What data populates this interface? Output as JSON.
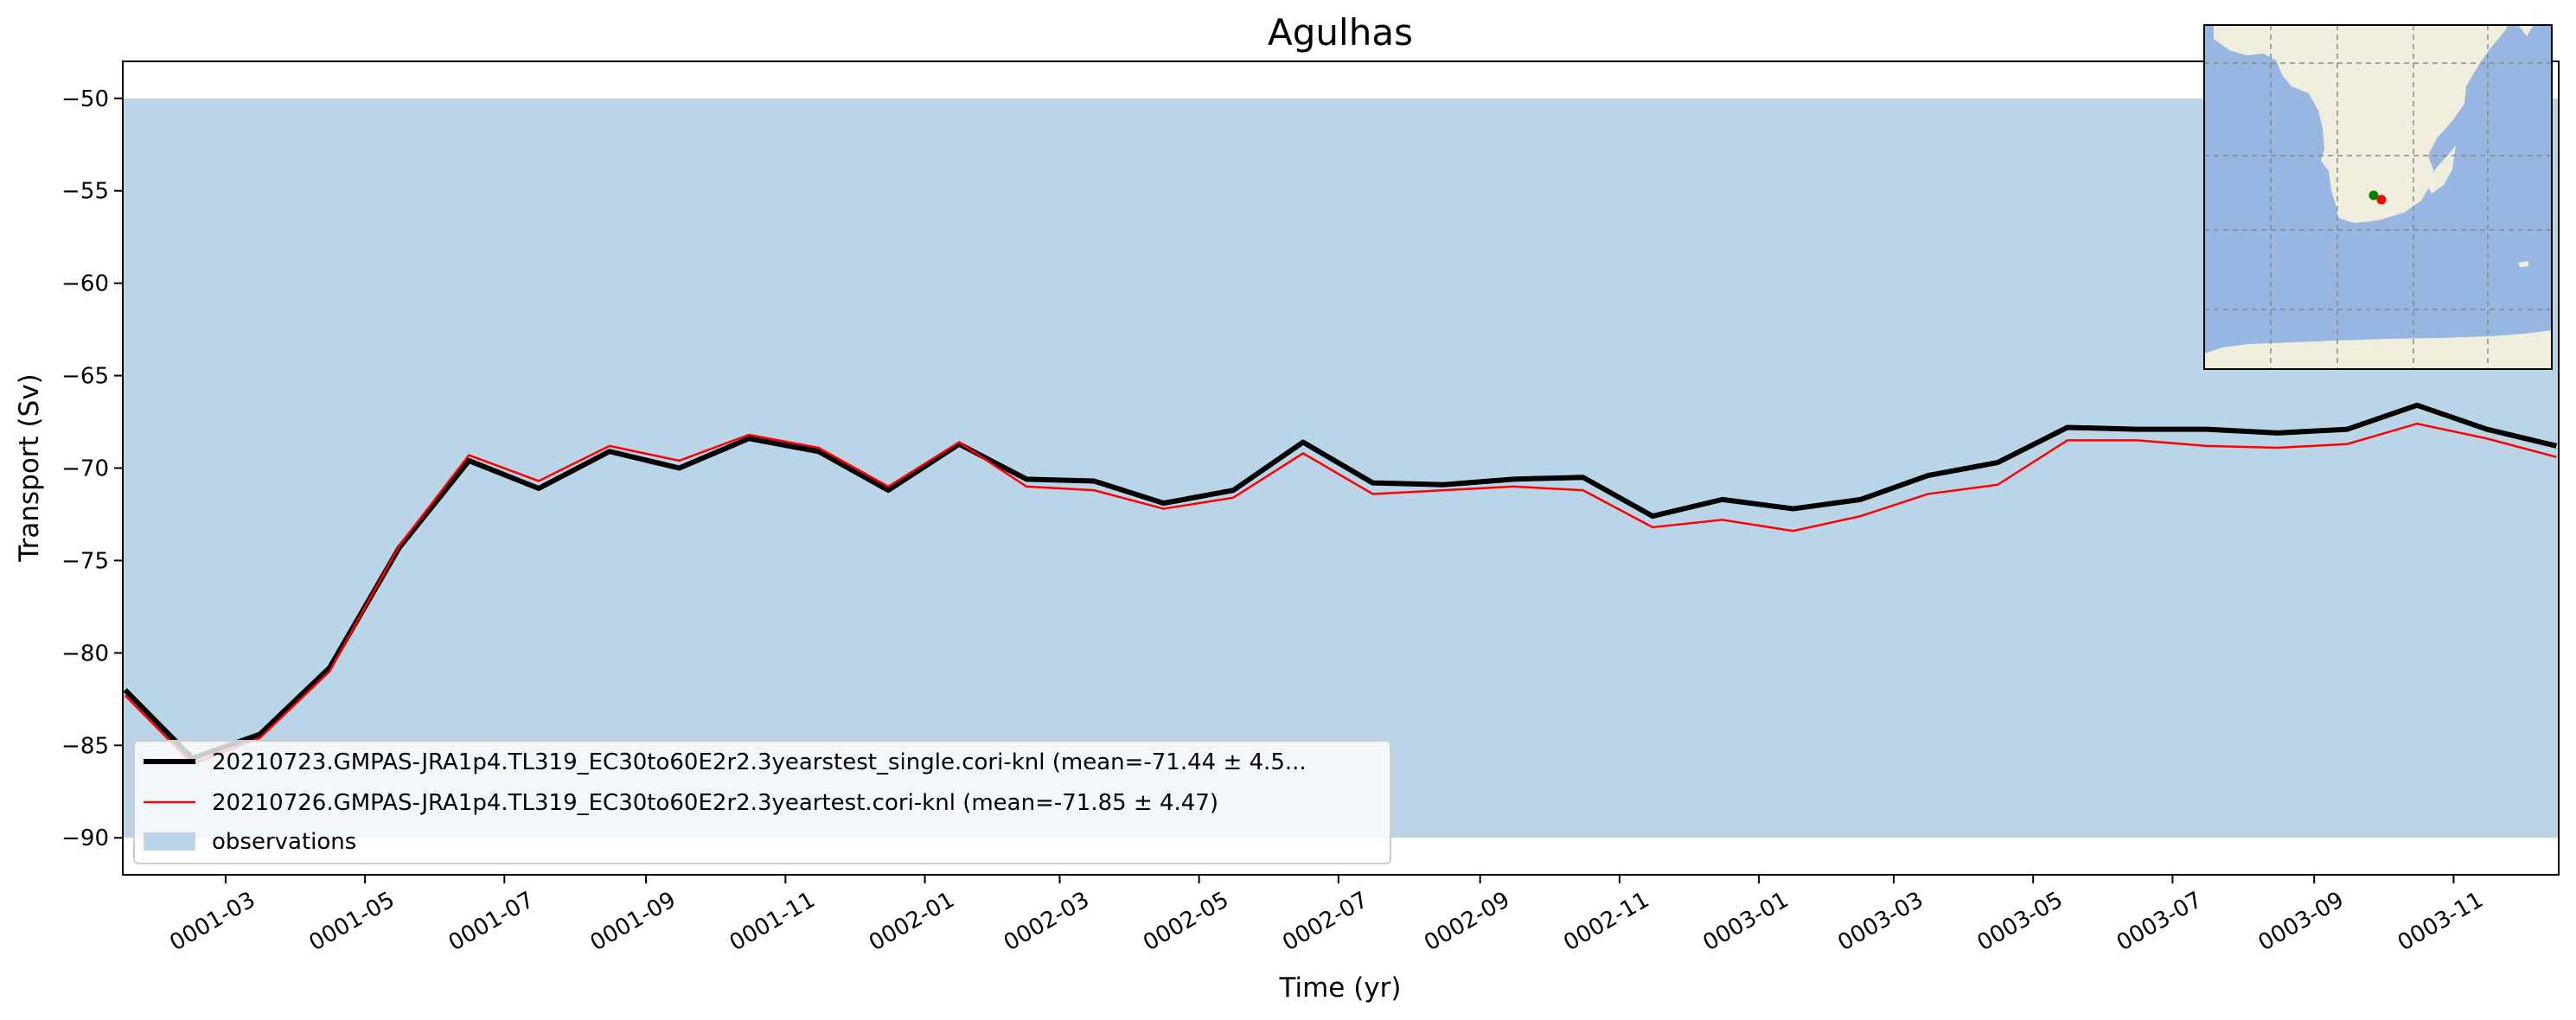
{
  "chart_data": {
    "type": "line",
    "title": "Agulhas",
    "xlabel": "Time (yr)",
    "ylabel": "Transport (Sv)",
    "x_start_month": "0001-01",
    "x_ticks": [
      "0001-03",
      "0001-05",
      "0001-07",
      "0001-09",
      "0001-11",
      "0002-01",
      "0002-03",
      "0002-05",
      "0002-07",
      "0002-09",
      "0002-11",
      "0003-01",
      "0003-03",
      "0003-05",
      "0003-07",
      "0003-09",
      "0003-11"
    ],
    "xlim": [
      "0001-01-15",
      "0003-12-17"
    ],
    "ylim": [
      -92,
      -48
    ],
    "y_ticks": [
      -50,
      -55,
      -60,
      -65,
      -70,
      -75,
      -80,
      -85,
      -90
    ],
    "grid": false,
    "legend_location": "lower left",
    "observations": {
      "name": "observations",
      "range": [
        -90,
        -50
      ],
      "color": "#bad5e8"
    },
    "series": [
      {
        "name": "20210723.GMPAS-JRA1p4.TL319_EC30to60E2r2.3yearstest_single.cori-knl (mean=-71.44 ± 4.5...",
        "color": "#000000",
        "values": [
          -82.0,
          -85.7,
          -84.4,
          -80.8,
          -74.3,
          -69.6,
          -71.1,
          -69.1,
          -70.0,
          -68.4,
          -69.1,
          -71.2,
          -68.7,
          -70.6,
          -70.7,
          -71.9,
          -71.2,
          -68.6,
          -70.8,
          -70.9,
          -70.6,
          -70.5,
          -72.6,
          -71.7,
          -72.2,
          -71.7,
          -70.4,
          -69.7,
          -67.8,
          -67.9,
          -67.9,
          -68.1,
          -67.9,
          -66.6,
          -67.9,
          -68.8
        ]
      },
      {
        "name": "20210726.GMPAS-JRA1p4.TL319_EC30to60E2r2.3yeartest.cori-knl (mean=-71.85 ± 4.47)",
        "color": "#ff0000",
        "values": [
          -82.3,
          -86.0,
          -84.6,
          -81.0,
          -74.2,
          -69.3,
          -70.7,
          -68.8,
          -69.6,
          -68.2,
          -68.9,
          -71.0,
          -68.6,
          -71.0,
          -71.2,
          -72.2,
          -71.6,
          -69.2,
          -71.4,
          -71.2,
          -71.0,
          -71.2,
          -73.2,
          -72.8,
          -73.4,
          -72.6,
          -71.4,
          -70.9,
          -68.5,
          -68.5,
          -68.8,
          -68.9,
          -68.7,
          -67.6,
          -68.4,
          -69.4
        ]
      }
    ],
    "inset_map": {
      "land_color": "#efeedd",
      "ocean_color": "#97b6e1",
      "markers": [
        {
          "color": "#008000"
        },
        {
          "color": "#ff0000"
        }
      ]
    }
  }
}
